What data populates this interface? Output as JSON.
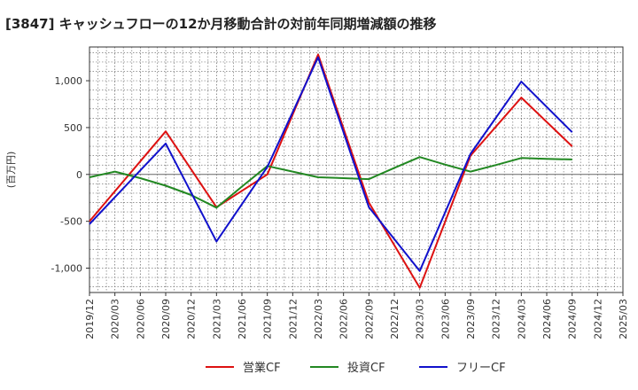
{
  "title": "[3847]  キャッシュフローの12か月移動合計の対前年同期増減額の推移",
  "chart_data": {
    "type": "line",
    "title": "[3847]  キャッシュフローの12か月移動合計の対前年同期増減額の推移",
    "xlabel": "",
    "ylabel": "(百万円)",
    "categories": [
      "2019/12",
      "2020/03",
      "2020/06",
      "2020/09",
      "2020/12",
      "2021/03",
      "2021/06",
      "2021/09",
      "2021/12",
      "2022/03",
      "2022/06",
      "2022/09",
      "2022/12",
      "2023/03",
      "2023/06",
      "2023/09",
      "2023/12",
      "2024/03",
      "2024/06",
      "2024/09",
      "2024/12",
      "2025/03"
    ],
    "ylim": [
      -1260,
      1360
    ],
    "yticks": [
      -1000,
      -500,
      0,
      500,
      1000
    ],
    "ytick_labels": [
      "-1,000",
      "-500",
      "0",
      "500",
      "1,000"
    ],
    "grid": true,
    "legend_position": "bottom",
    "series": [
      {
        "name": "営業CF",
        "color": "#dd1111",
        "values": [
          -500,
          null,
          null,
          460,
          null,
          -350,
          null,
          0,
          null,
          1280,
          null,
          -300,
          null,
          -1210,
          null,
          200,
          null,
          820,
          null,
          300,
          null,
          null
        ]
      },
      {
        "name": "投資CF",
        "color": "#228822",
        "values": [
          -30,
          30,
          -40,
          -120,
          -220,
          -355,
          -130,
          90,
          30,
          -30,
          -40,
          -50,
          70,
          185,
          105,
          30,
          100,
          175,
          165,
          160,
          null,
          null
        ]
      },
      {
        "name": "フリーCF",
        "color": "#1111cc",
        "values": [
          -530,
          null,
          null,
          330,
          null,
          -715,
          null,
          80,
          null,
          1250,
          null,
          -350,
          null,
          -1030,
          null,
          220,
          null,
          990,
          null,
          450,
          null,
          null
        ]
      }
    ]
  }
}
